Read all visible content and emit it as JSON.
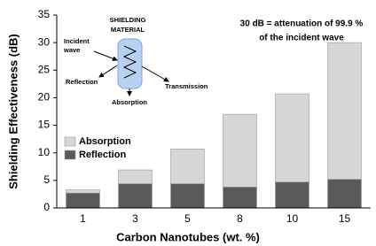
{
  "chart_data": {
    "type": "stacked_bar",
    "x_label": "Carbon Nanotubes (wt. %)",
    "y_label": "Shielding Effectiveness (dB)",
    "categories": [
      "1",
      "3",
      "5",
      "8",
      "10",
      "15"
    ],
    "series": [
      {
        "name": "Reflection",
        "color": "#5a5a5a",
        "values": [
          2.7,
          4.4,
          4.4,
          3.8,
          4.7,
          5.2
        ]
      },
      {
        "name": "Absorption",
        "color": "#d6d6d6",
        "values": [
          0.6,
          2.5,
          6.3,
          13.2,
          16.0,
          24.8
        ]
      }
    ],
    "ylim": [
      0,
      35
    ],
    "yticks": [
      0,
      5,
      10,
      15,
      20,
      25,
      30,
      35
    ],
    "annotation": [
      "30 dB = attenuation of 99.9 %",
      "of the incident wave"
    ],
    "inset": {
      "title": [
        "SHIELDING",
        "MATERIAL"
      ],
      "incident": [
        "Incident",
        "wave"
      ],
      "reflection": "Reflection",
      "transmission": "Transmission",
      "absorption": "Absorption"
    }
  }
}
